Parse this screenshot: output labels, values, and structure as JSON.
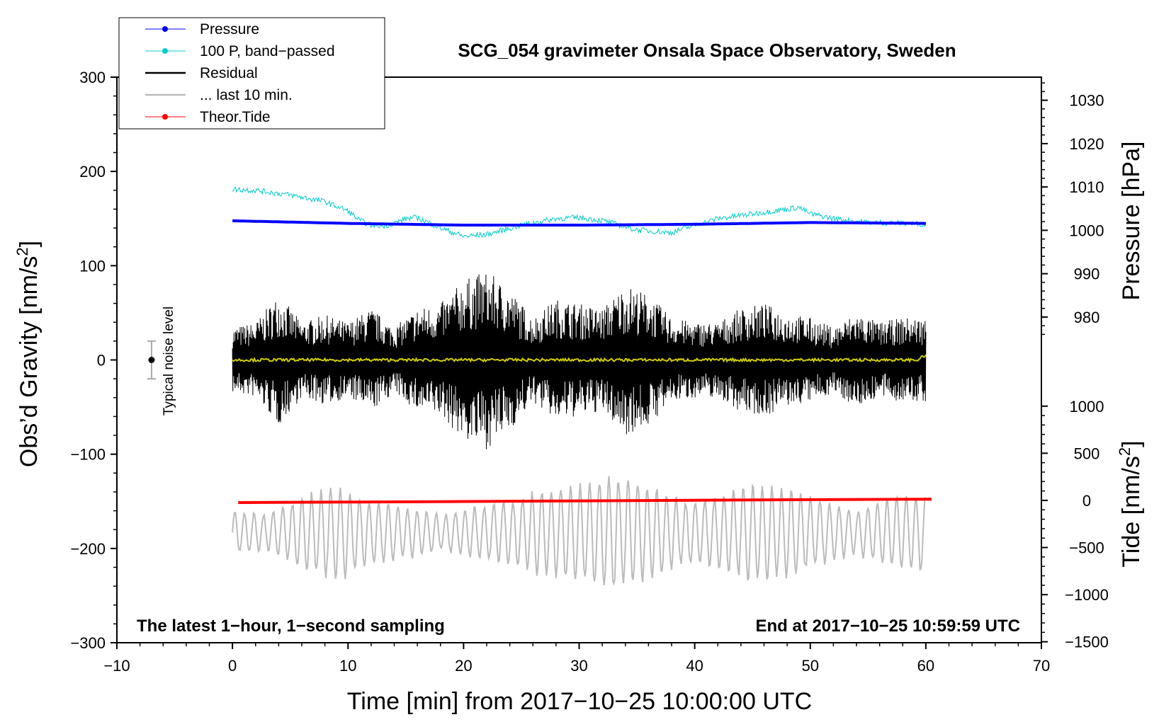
{
  "colors": {
    "pressure": "#0000ff",
    "pressure_bp": "#00cccc",
    "residual": "#000000",
    "last10": "#bbbbbb",
    "tide": "#ff0000",
    "yellow": "#cccc00",
    "frame": "#000000"
  },
  "chart_data": {
    "type": "line",
    "title": "SCG_054 gravimeter Onsala Space Observatory, Sweden",
    "xlabel": "Time [min] from 2017−10−25 10:00:00 UTC",
    "ylabel_left": "Obs’d Gravity [nm/s",
    "ylabel_left_sup": "2",
    "ylabel_left_close": "]",
    "ylabel_right_top": "Pressure [hPa]",
    "ylabel_right_bottom": "Tide [nm/s",
    "ylabel_right_bottom_sup": "2",
    "ylabel_right_bottom_close": "]",
    "xlim": [
      -10,
      70
    ],
    "ylim_left": [
      -300,
      300
    ],
    "xticks": [
      -10,
      0,
      10,
      20,
      30,
      40,
      50,
      60,
      70
    ],
    "xtick_labels": [
      "−10",
      "0",
      "10",
      "20",
      "30",
      "40",
      "50",
      "60",
      "70"
    ],
    "yticks_left": [
      300,
      200,
      100,
      0,
      -100,
      -200,
      -300
    ],
    "ytick_labels_left": [
      "300",
      "200",
      "100",
      "0",
      "−100",
      "−200",
      "−300"
    ],
    "pressure_axis": {
      "ticks": [
        1030,
        1020,
        1010,
        1000,
        990,
        980
      ],
      "tick_labels": [
        "1030",
        "1020",
        "1010",
        "1000",
        "990",
        "980"
      ],
      "left_equivalent": {
        "at_1000_hPa": 137.5,
        "per_hPa": 4.6
      }
    },
    "tide_axis": {
      "ticks": [
        1000,
        500,
        0,
        -500,
        -1000,
        -1500
      ],
      "tick_labels": [
        "1000",
        "500",
        "0",
        "−500",
        "−1000",
        "−1500"
      ],
      "left_equivalent": {
        "at_0": -149,
        "per_unit": 0.1
      }
    },
    "legend": [
      {
        "label": "Pressure",
        "style": "dot-line",
        "color_key": "pressure"
      },
      {
        "label": "100 P, band−passed",
        "style": "dot-line",
        "color_key": "pressure_bp"
      },
      {
        "label": "Residual",
        "style": "line",
        "color_key": "residual"
      },
      {
        "label": "... last 10 min.",
        "style": "line",
        "color_key": "last10"
      },
      {
        "label": "Theor.Tide",
        "style": "dot-line",
        "color_key": "tide"
      }
    ],
    "annotations": {
      "bottom_left": "The latest 1−hour, 1−second sampling",
      "bottom_right": "End at 2017−10−25 10:59:59 UTC",
      "noise_label": "Typical noise level"
    },
    "noise_bar": {
      "x": -7,
      "center": 0,
      "half_range": 20
    },
    "series": [
      {
        "name": "Pressure",
        "unit": "hPa",
        "x": [
          0,
          10,
          20,
          30,
          40,
          50,
          60
        ],
        "values": [
          1002.2,
          1001.6,
          1001.2,
          1001.2,
          1001.4,
          1001.8,
          1001.6
        ]
      },
      {
        "name": "100 P, band−passed",
        "unit": "nm/s2 (plotted on gravity axis)",
        "x": [
          0,
          2,
          5,
          8,
          10,
          11,
          12,
          13,
          14,
          15,
          16,
          18,
          20,
          22,
          25,
          28,
          30,
          32,
          35,
          38,
          40,
          42,
          45,
          48,
          49,
          50,
          52,
          55,
          58,
          60
        ],
        "values": [
          181,
          180,
          175,
          168,
          158,
          148,
          143,
          142,
          145,
          150,
          151,
          140,
          131,
          133,
          143,
          150,
          151,
          148,
          138,
          135,
          143,
          150,
          155,
          160,
          162,
          155,
          150,
          146,
          145,
          144
        ]
      },
      {
        "name": "Residual",
        "unit": "nm/s2",
        "x": [
          0,
          2,
          4,
          6,
          8,
          10,
          12,
          14,
          16,
          18,
          20,
          22,
          24,
          26,
          28,
          30,
          32,
          34,
          36,
          38,
          40,
          42,
          44,
          46,
          48,
          50,
          52,
          54,
          56,
          58,
          60
        ],
        "envelope": [
          35,
          40,
          70,
          40,
          48,
          40,
          55,
          35,
          55,
          60,
          85,
          95,
          75,
          45,
          65,
          60,
          55,
          80,
          70,
          45,
          40,
          40,
          55,
          60,
          50,
          45,
          35,
          50,
          40,
          45,
          45
        ]
      },
      {
        "name": "... last 10 min.",
        "unit": "nm/s2 (plotted on gravity axis)",
        "x": [
          0,
          3,
          6,
          9,
          12,
          15,
          18,
          21,
          24,
          27,
          30,
          33,
          36,
          39,
          42,
          45,
          48,
          51,
          54,
          57,
          60
        ],
        "envelope": [
          25,
          20,
          40,
          55,
          35,
          30,
          20,
          30,
          35,
          50,
          55,
          65,
          55,
          35,
          40,
          55,
          50,
          35,
          25,
          40,
          45
        ]
      },
      {
        "name": "Theor.Tide",
        "unit": "nm/s2",
        "x": [
          0.5,
          10,
          20,
          30,
          40,
          50,
          60.5
        ],
        "values": [
          -23,
          -18,
          -12,
          -5,
          2,
          8,
          13
        ]
      }
    ]
  }
}
